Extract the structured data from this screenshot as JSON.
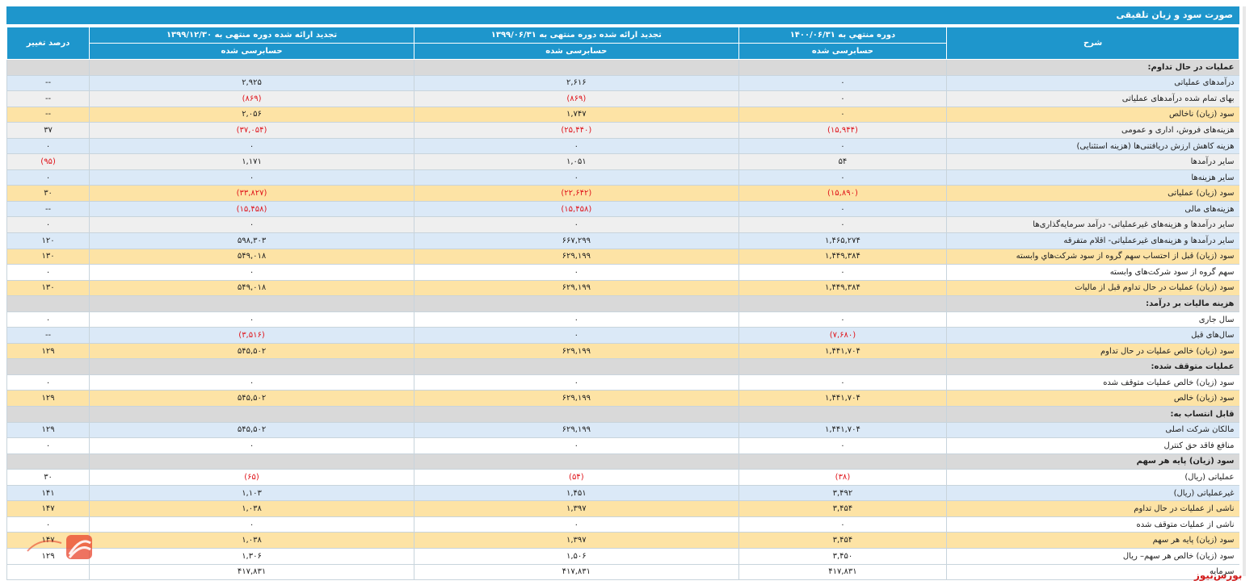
{
  "title": "صورت سود و زیان تلفیقی",
  "headers": {
    "desc": "شرح",
    "period1": "دوره منتهي به ۱۴۰۰/۰۶/۳۱",
    "period2": "تجدید ارائه شده دوره منتهی به ۱۳۹۹/۰۶/۳۱",
    "period3": "تجدید ارائه شده دوره منتهی به ۱۳۹۹/۱۲/۳۰",
    "change": "درصد تغییر",
    "audit1": "حسابرسی شده",
    "audit2": "حسابرسی شده",
    "audit3": "حسابرسی شده"
  },
  "rows": [
    {
      "type": "section",
      "desc": "عملیات در حال تداوم:",
      "c1": "",
      "c2": "",
      "c3": "",
      "ch": ""
    },
    {
      "type": "blue",
      "desc": "درآمدهای عملیاتی",
      "c1": "۰",
      "c2": "۲,۶۱۶",
      "c3": "۲,۹۲۵",
      "ch": "--"
    },
    {
      "type": "gray",
      "desc": "بهای تمام شده درآمدهای عملیاتی",
      "c1": "۰",
      "c2": "(۸۶۹)",
      "c3": "(۸۶۹)",
      "ch": "--"
    },
    {
      "type": "yellow",
      "desc": "سود (زیان) ناخالص",
      "c1": "۰",
      "c2": "۱,۷۴۷",
      "c3": "۲,۰۵۶",
      "ch": "--"
    },
    {
      "type": "gray",
      "desc": "هزینه‌های فروش، اداری و عمومی",
      "c1": "(۱۵,۹۴۴)",
      "c2": "(۲۵,۴۴۰)",
      "c3": "(۳۷,۰۵۴)",
      "ch": "۳۷"
    },
    {
      "type": "blue",
      "desc": "هزینه کاهش ارزش دریافتنی‌ها (هزینه استثنایی)",
      "c1": "۰",
      "c2": "۰",
      "c3": "۰",
      "ch": "۰"
    },
    {
      "type": "gray",
      "desc": "سایر درآمدها",
      "c1": "۵۴",
      "c2": "۱,۰۵۱",
      "c3": "۱,۱۷۱",
      "ch": "(۹۵)"
    },
    {
      "type": "blue",
      "desc": "سایر هزینه‌ها",
      "c1": "۰",
      "c2": "۰",
      "c3": "۰",
      "ch": "۰"
    },
    {
      "type": "yellow",
      "desc": "سود (زیان) عملیاتی",
      "c1": "(۱۵,۸۹۰)",
      "c2": "(۲۲,۶۴۲)",
      "c3": "(۳۳,۸۲۷)",
      "ch": "۳۰"
    },
    {
      "type": "blue",
      "desc": "هزینه‌های مالی",
      "c1": "۰",
      "c2": "(۱۵,۴۵۸)",
      "c3": "(۱۵,۴۵۸)",
      "ch": "--"
    },
    {
      "type": "gray",
      "desc": "سایر درآمدها و هزینه‌های غیرعملیاتی- درآمد سرمایه‌گذاری‌ها",
      "c1": "۰",
      "c2": "۰",
      "c3": "۰",
      "ch": "۰"
    },
    {
      "type": "blue",
      "desc": "سایر درآمدها و هزینه‌های غیرعملیاتی- اقلام متفرقه",
      "c1": "۱,۴۶۵,۲۷۴",
      "c2": "۶۶۷,۲۹۹",
      "c3": "۵۹۸,۳۰۳",
      "ch": "۱۲۰"
    },
    {
      "type": "yellow",
      "desc": "سود (زیان) قبل از احتساب سهم گروه از سود شرکت‌هاي وابسته",
      "c1": "۱,۴۴۹,۳۸۴",
      "c2": "۶۲۹,۱۹۹",
      "c3": "۵۴۹,۰۱۸",
      "ch": "۱۳۰"
    },
    {
      "type": "white",
      "desc": "سهم گروه از سود شرکت‌های وابسته",
      "c1": "۰",
      "c2": "۰",
      "c3": "۰",
      "ch": "۰"
    },
    {
      "type": "yellow",
      "desc": "سود (زیان) عملیات در حال تداوم قبل از مالیات",
      "c1": "۱,۴۴۹,۳۸۴",
      "c2": "۶۲۹,۱۹۹",
      "c3": "۵۴۹,۰۱۸",
      "ch": "۱۳۰"
    },
    {
      "type": "section",
      "desc": "هزینه مالیات بر درآمد:",
      "c1": "",
      "c2": "",
      "c3": "",
      "ch": ""
    },
    {
      "type": "white",
      "desc": "سال جاری",
      "c1": "۰",
      "c2": "۰",
      "c3": "۰",
      "ch": "۰"
    },
    {
      "type": "blue",
      "desc": "سال‌های قبل",
      "c1": "(۷,۶۸۰)",
      "c2": "۰",
      "c3": "(۳,۵۱۶)",
      "ch": "--"
    },
    {
      "type": "yellow",
      "desc": "سود (زیان) خالص عملیات در حال تداوم",
      "c1": "۱,۴۴۱,۷۰۴",
      "c2": "۶۲۹,۱۹۹",
      "c3": "۵۴۵,۵۰۲",
      "ch": "۱۲۹"
    },
    {
      "type": "section",
      "desc": "عملیات متوقف شده:",
      "c1": "",
      "c2": "",
      "c3": "",
      "ch": ""
    },
    {
      "type": "white",
      "desc": "سود (زیان) خالص عملیات متوقف شده",
      "c1": "۰",
      "c2": "۰",
      "c3": "۰",
      "ch": "۰"
    },
    {
      "type": "yellow",
      "desc": "سود (زیان) خالص",
      "c1": "۱,۴۴۱,۷۰۴",
      "c2": "۶۲۹,۱۹۹",
      "c3": "۵۴۵,۵۰۲",
      "ch": "۱۲۹"
    },
    {
      "type": "section",
      "desc": "قابل انتساب به:",
      "c1": "",
      "c2": "",
      "c3": "",
      "ch": ""
    },
    {
      "type": "blue",
      "desc": "مالکان شرکت اصلی",
      "c1": "۱,۴۴۱,۷۰۴",
      "c2": "۶۲۹,۱۹۹",
      "c3": "۵۴۵,۵۰۲",
      "ch": "۱۲۹"
    },
    {
      "type": "white",
      "desc": "منافع فاقد حق کنترل",
      "c1": "۰",
      "c2": "۰",
      "c3": "۰",
      "ch": "۰"
    },
    {
      "type": "section",
      "desc": "سود (زیان) پایه هر سهم",
      "c1": "",
      "c2": "",
      "c3": "",
      "ch": ""
    },
    {
      "type": "white",
      "desc": "عملیاتی (ریال)",
      "c1": "(۳۸)",
      "c2": "(۵۴)",
      "c3": "(۶۵)",
      "ch": "۳۰"
    },
    {
      "type": "blue",
      "desc": "غیرعملیاتی (ریال)",
      "c1": "۳,۴۹۲",
      "c2": "۱,۴۵۱",
      "c3": "۱,۱۰۳",
      "ch": "۱۴۱"
    },
    {
      "type": "yellow",
      "desc": "ناشی از عملیات در حال تداوم",
      "c1": "۳,۴۵۴",
      "c2": "۱,۳۹۷",
      "c3": "۱,۰۳۸",
      "ch": "۱۴۷"
    },
    {
      "type": "white",
      "desc": "ناشی از عملیات متوقف شده",
      "c1": "۰",
      "c2": "۰",
      "c3": "۰",
      "ch": "۰"
    },
    {
      "type": "yellow",
      "desc": "سود (زیان) پایه هر سهم",
      "c1": "۳,۴۵۴",
      "c2": "۱,۳۹۷",
      "c3": "۱,۰۳۸",
      "ch": "۱۴۷"
    },
    {
      "type": "white",
      "desc": "سود (زیان) خالص هر سهم– ریال",
      "c1": "۳,۴۵۰",
      "c2": "۱,۵۰۶",
      "c3": "۱,۳۰۶",
      "ch": "۱۲۹"
    },
    {
      "type": "white",
      "desc": "سرمایه",
      "c1": "۴۱۷,۸۳۱",
      "c2": "۴۱۷,۸۳۱",
      "c3": "۴۱۷,۸۳۱",
      "ch": ""
    }
  ],
  "watermark": "بورس‌نیوز",
  "colors": {
    "header": "#1e96cc",
    "negative": "#e0151b",
    "yellow": "#fde3a5",
    "blue": "#dbe9f7",
    "gray": "#efefef",
    "section": "#d9d9d9"
  },
  "icons": {
    "logo": "bourse-news-logo"
  }
}
